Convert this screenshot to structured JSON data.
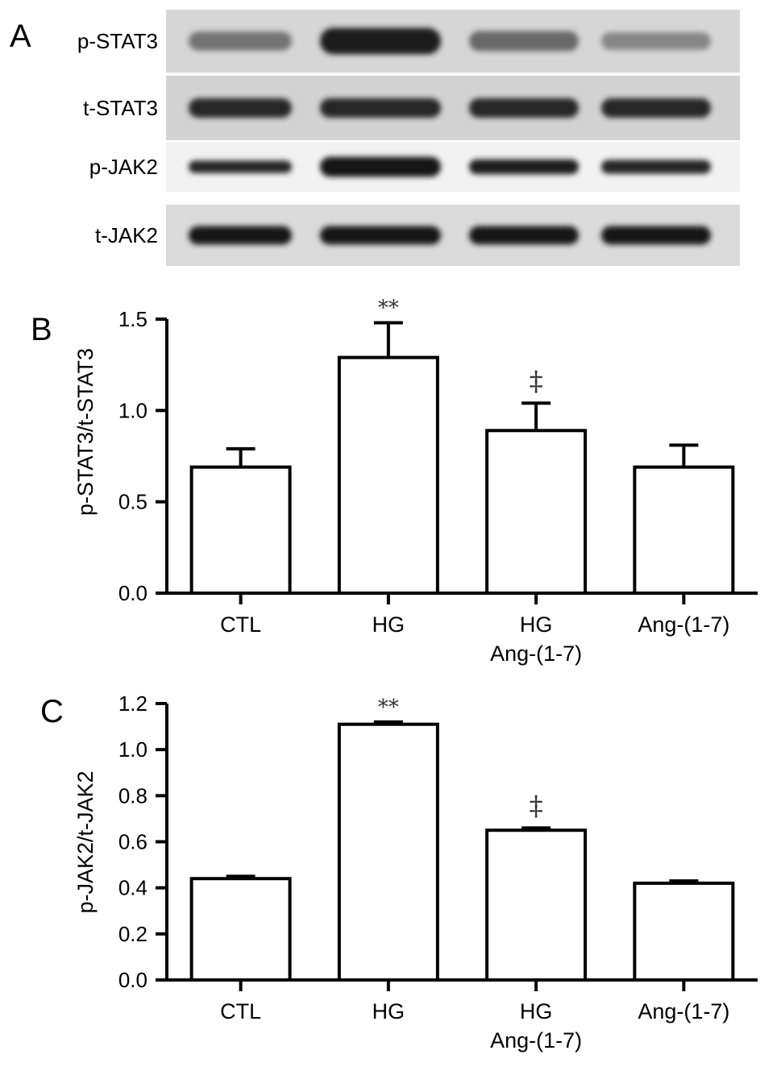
{
  "panel_a": {
    "letter": "A",
    "rows": [
      {
        "label": "p-STAT3",
        "lanes": [
          0.45,
          0.9,
          0.5,
          0.35
        ],
        "band_height": [
          0.3,
          0.42,
          0.32,
          0.28
        ]
      },
      {
        "label": "t-STAT3",
        "lanes": [
          0.85,
          0.85,
          0.85,
          0.85
        ],
        "band_height": [
          0.3,
          0.3,
          0.3,
          0.3
        ]
      },
      {
        "label": "p-JAK2",
        "lanes": [
          0.85,
          0.95,
          0.9,
          0.85
        ],
        "band_height": [
          0.25,
          0.4,
          0.3,
          0.28
        ]
      },
      {
        "label": "t-JAK2",
        "lanes": [
          0.95,
          0.95,
          0.95,
          0.95
        ],
        "band_height": [
          0.3,
          0.3,
          0.3,
          0.3
        ]
      }
    ]
  },
  "chart_data": [
    {
      "panel": "B",
      "type": "bar",
      "categories": [
        [
          "CTL"
        ],
        [
          "HG"
        ],
        [
          "HG",
          "Ang-(1-7)"
        ],
        [
          "Ang-(1-7)"
        ]
      ],
      "values": [
        0.69,
        1.29,
        0.89,
        0.69
      ],
      "errors": [
        0.1,
        0.19,
        0.15,
        0.12
      ],
      "annotations": [
        "",
        "**",
        "‡",
        ""
      ],
      "ylabel": "p-STAT3/t-STAT3",
      "ylim": [
        0,
        1.5
      ],
      "yticks": [
        "0.0",
        "0.5",
        "1.0",
        "1.5"
      ]
    },
    {
      "panel": "C",
      "type": "bar",
      "categories": [
        [
          "CTL"
        ],
        [
          "HG"
        ],
        [
          "HG",
          "Ang-(1-7)"
        ],
        [
          "Ang-(1-7)"
        ]
      ],
      "values": [
        0.44,
        1.11,
        0.65,
        0.42
      ],
      "errors": [
        0.01,
        0.01,
        0.01,
        0.01
      ],
      "annotations": [
        "",
        "**",
        "‡",
        ""
      ],
      "ylabel": "p-JAK2/t-JAK2",
      "ylim": [
        0,
        1.2
      ],
      "yticks": [
        "0.0",
        "0.2",
        "0.4",
        "0.6",
        "0.8",
        "1.0",
        "1.2"
      ]
    }
  ]
}
